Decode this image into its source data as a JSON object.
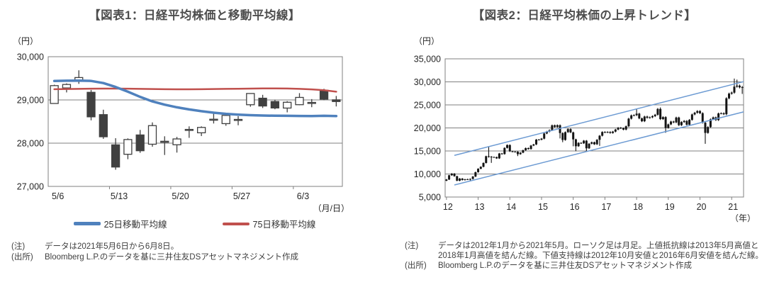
{
  "figure1": {
    "title": "【図表1：日経平均株価と移動平均線】",
    "y_unit": "（円）",
    "x_unit": "（月/日）",
    "legend": [
      {
        "label": "25日移動平均線",
        "color": "#4F81BD"
      },
      {
        "label": "75日移動平均線",
        "color": "#C0504D"
      }
    ],
    "notes": [
      {
        "label": "(注)",
        "text": "データは2021年5月6日から6月8日。"
      },
      {
        "label": "(出所)",
        "text": "Bloomberg L.P.のデータを基に三井住友DSアセットマネジメント作成"
      }
    ],
    "chart_data": {
      "type": "candlestick+line",
      "title": "日経平均株価と移動平均線",
      "ylim": [
        27000,
        30000
      ],
      "yticks": [
        27000,
        28000,
        29000,
        30000
      ],
      "xtick_labels": [
        "5/6",
        "5/13",
        "5/20",
        "5/27",
        "6/3"
      ],
      "xtick_indices": [
        0,
        5,
        10,
        15,
        20
      ],
      "grid": true,
      "candles_ohlc": [
        [
          "5/6",
          28918,
          29352,
          28918,
          29331
        ],
        [
          "5/7",
          29277,
          29383,
          29174,
          29358
        ],
        [
          "5/10",
          29459,
          29685,
          29372,
          29518
        ],
        [
          "5/11",
          29176,
          29231,
          28528,
          28609
        ],
        [
          "5/12",
          28660,
          28774,
          28100,
          28148
        ],
        [
          "5/13",
          27961,
          28115,
          27385,
          27448
        ],
        [
          "5/14",
          27743,
          28111,
          27629,
          28084
        ],
        [
          "5/17",
          28190,
          28306,
          27777,
          27825
        ],
        [
          "5/18",
          27976,
          28480,
          27918,
          28406
        ],
        [
          "5/19",
          28044,
          28159,
          27727,
          28044
        ],
        [
          "5/20",
          27963,
          28145,
          27782,
          28098
        ],
        [
          "5/21",
          28317,
          28389,
          28123,
          28318
        ],
        [
          "5/24",
          28240,
          28389,
          28165,
          28364
        ],
        [
          "5/25",
          28553,
          28697,
          28455,
          28554
        ],
        [
          "5/26",
          28452,
          28670,
          28402,
          28642
        ],
        [
          "5/27",
          28549,
          28624,
          28414,
          28549
        ],
        [
          "5/28",
          28889,
          29149,
          28843,
          29149
        ],
        [
          "5/31",
          29040,
          29118,
          28814,
          28860
        ],
        [
          "6/1",
          28963,
          29003,
          28784,
          28814
        ],
        [
          "6/2",
          28812,
          28972,
          28713,
          28946
        ],
        [
          "6/3",
          28890,
          29157,
          28879,
          29058
        ],
        [
          "6/4",
          28942,
          29019,
          28832,
          28942
        ],
        [
          "6/7",
          29225,
          29258,
          28995,
          29019
        ],
        [
          "6/8",
          29002,
          29092,
          28849,
          28963
        ]
      ],
      "series": [
        {
          "name": "25日移動平均線",
          "color": "#4F81BD",
          "width": 3.5,
          "values": [
            29440,
            29445,
            29448,
            29440,
            29390,
            29300,
            29190,
            29070,
            28965,
            28890,
            28830,
            28780,
            28740,
            28705,
            28678,
            28660,
            28648,
            28640,
            28635,
            28632,
            28630,
            28628,
            28632,
            28628
          ]
        },
        {
          "name": "75日移動平均線",
          "color": "#C0504D",
          "width": 2.5,
          "values": [
            29248,
            29252,
            29256,
            29260,
            29262,
            29262,
            29260,
            29256,
            29252,
            29248,
            29246,
            29246,
            29248,
            29252,
            29256,
            29258,
            29262,
            29266,
            29268,
            29264,
            29256,
            29244,
            29225,
            29190
          ]
        }
      ]
    }
  },
  "figure2": {
    "title": "【図表2：日経平均株価の上昇トレンド】",
    "y_unit": "（円）",
    "x_unit": "（年）",
    "notes": [
      {
        "label": "(注)",
        "text": "データは2012年1月から2021年5月。ローソク足は月足。上値抵抗線は2013年5月高値と2018年1月高値を結んだ線。下値支持線は2012年10月安値と2016年6月安値を結んだ線。"
      },
      {
        "label": "(出所)",
        "text": "Bloomberg L.P.のデータを基に三井住友DSアセットマネジメント作成"
      }
    ],
    "chart_data": {
      "type": "candlestick",
      "title": "日経平均株価の上昇トレンド",
      "ylim": [
        5000,
        35000
      ],
      "yticks": [
        5000,
        10000,
        15000,
        20000,
        25000,
        30000,
        35000
      ],
      "x_start": "2012-01",
      "x_end": "2021-05",
      "xtick_labels": [
        "12",
        "13",
        "14",
        "15",
        "16",
        "17",
        "18",
        "19",
        "20",
        "21"
      ],
      "grid": true,
      "candle_color": "#141414",
      "first_open": 8549,
      "monthly_closes": [
        8803,
        9723,
        10084,
        9521,
        8543,
        9007,
        8695,
        8840,
        8870,
        8928,
        9446,
        10395,
        11139,
        11559,
        12398,
        13861,
        13775,
        13677,
        13668,
        13389,
        14456,
        14328,
        15662,
        16291,
        14915,
        14841,
        14828,
        14304,
        14632,
        15162,
        15621,
        15425,
        16174,
        16414,
        17460,
        17451,
        17674,
        18798,
        19207,
        19520,
        20563,
        20236,
        20585,
        18890,
        17388,
        19083,
        19747,
        19034,
        17518,
        16027,
        16759,
        16666,
        17235,
        15576,
        16569,
        16887,
        16450,
        17425,
        18308,
        19114,
        19041,
        19119,
        18909,
        19197,
        19651,
        20033,
        19925,
        19646,
        20356,
        22012,
        22725,
        22765,
        23098,
        22068,
        21454,
        22468,
        22202,
        22304,
        22554,
        22865,
        24120,
        21920,
        22351,
        20015,
        20773,
        21385,
        21206,
        22259,
        20601,
        21276,
        21522,
        20704,
        21756,
        22927,
        23294,
        23657,
        23205,
        21143,
        18917,
        20194,
        21878,
        22288,
        21710,
        23140,
        23185,
        22977,
        26434,
        27444,
        27663,
        28966,
        29179,
        28813,
        28860
      ],
      "extreme_overrides": {
        "2012-10": {
          "low": 8488
        },
        "2013-05": {
          "high": 15943,
          "low": 13556
        },
        "2013-06": {
          "low": 12415
        },
        "2014-04": {
          "low": 13885
        },
        "2015-08": {
          "low": 17714
        },
        "2015-09": {
          "low": 16901
        },
        "2016-01": {
          "low": 16017
        },
        "2016-02": {
          "low": 14953
        },
        "2016-06": {
          "low": 14864
        },
        "2016-11": {
          "low": 16111
        },
        "2018-01": {
          "high": 24129
        },
        "2018-10": {
          "high": 24448
        },
        "2018-12": {
          "low": 18949
        },
        "2020-03": {
          "low": 16553
        },
        "2021-02": {
          "high": 30714
        },
        "2021-03": {
          "high": 30485
        },
        "2021-05": {
          "low": 27385
        }
      },
      "trendlines": [
        {
          "name": "上値抵抗線",
          "color": "#6D9BD3",
          "anchors_month_index": [
            [
              16.5,
              15943
            ],
            [
              72.5,
              24129
            ]
          ],
          "draw_range": [
            3.5,
            113
          ]
        },
        {
          "name": "下値支持線",
          "color": "#6D9BD3",
          "anchors_month_index": [
            [
              9.5,
              8488
            ],
            [
              53.5,
              14864
            ]
          ],
          "draw_range": [
            3.5,
            113
          ]
        }
      ]
    }
  },
  "style": {
    "grid_color": "#808080",
    "up_candle_fill": "#ffffff",
    "down_candle_fill": "#404040",
    "candle_stroke": "#404040"
  }
}
